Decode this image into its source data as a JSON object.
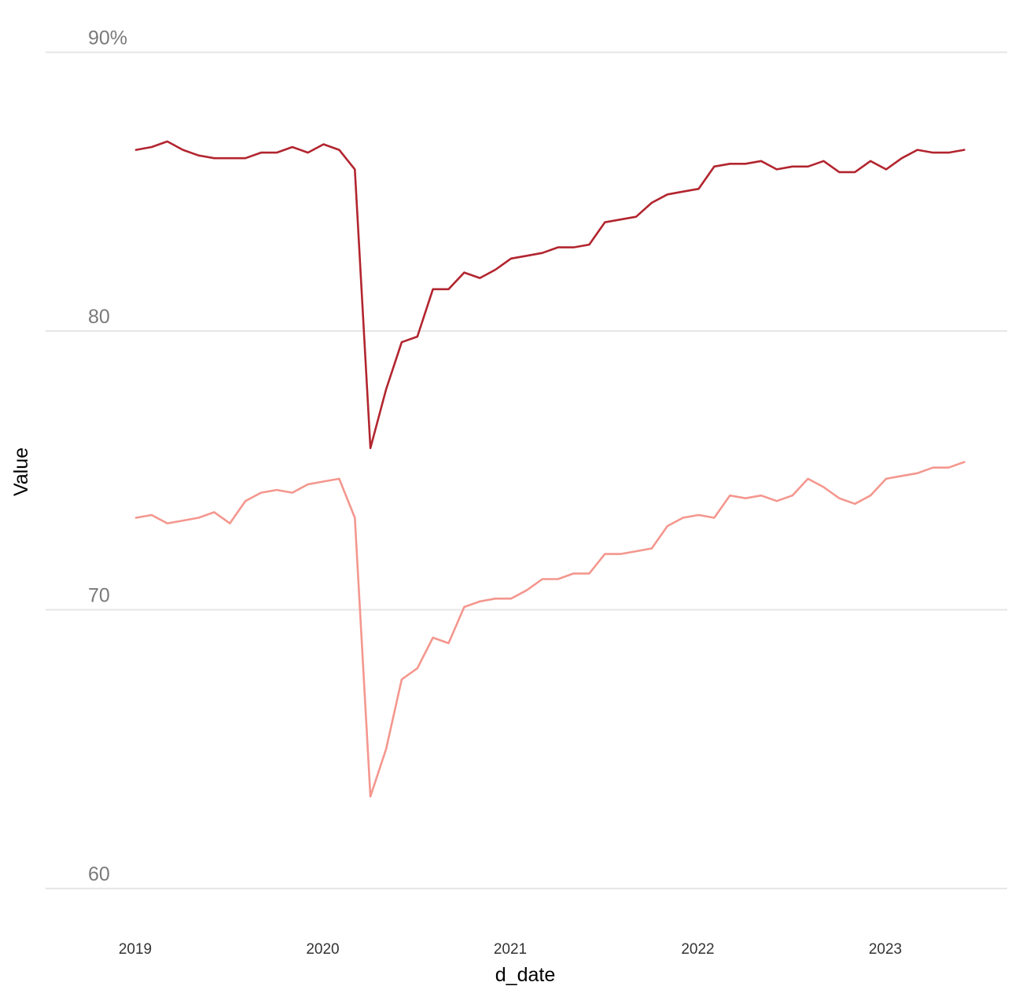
{
  "chart_data": {
    "type": "line",
    "title": "",
    "xlabel": "d_date",
    "ylabel": "Value",
    "ylim": [
      59,
      92
    ],
    "y_ticks": [
      {
        "value": 60,
        "label": "60"
      },
      {
        "value": 70,
        "label": "70"
      },
      {
        "value": 80,
        "label": "80"
      },
      {
        "value": 90,
        "label": "90%"
      }
    ],
    "x_ticks": [
      {
        "value": "2019-01",
        "label": "2019"
      },
      {
        "value": "2020-01",
        "label": "2020"
      },
      {
        "value": "2021-01",
        "label": "2021"
      },
      {
        "value": "2022-01",
        "label": "2022"
      },
      {
        "value": "2023-01",
        "label": "2023"
      }
    ],
    "xlim": [
      "2018-10",
      "2023-10"
    ],
    "grid": "horizontal",
    "legend": "none",
    "x": [
      "2019-01",
      "2019-02",
      "2019-03",
      "2019-04",
      "2019-05",
      "2019-06",
      "2019-07",
      "2019-08",
      "2019-09",
      "2019-10",
      "2019-11",
      "2019-12",
      "2020-01",
      "2020-02",
      "2020-03",
      "2020-04",
      "2020-05",
      "2020-06",
      "2020-07",
      "2020-08",
      "2020-09",
      "2020-10",
      "2020-11",
      "2020-12",
      "2021-01",
      "2021-02",
      "2021-03",
      "2021-04",
      "2021-05",
      "2021-06",
      "2021-07",
      "2021-08",
      "2021-09",
      "2021-10",
      "2021-11",
      "2021-12",
      "2022-01",
      "2022-02",
      "2022-03",
      "2022-04",
      "2022-05",
      "2022-06",
      "2022-07",
      "2022-08",
      "2022-09",
      "2022-10",
      "2022-11",
      "2022-12",
      "2023-01",
      "2023-02",
      "2023-03",
      "2023-04",
      "2023-05",
      "2023-06"
    ],
    "series": [
      {
        "color": "#b2252f",
        "values": [
          86.5,
          86.6,
          86.8,
          86.5,
          86.3,
          86.2,
          86.2,
          86.2,
          86.4,
          86.4,
          86.6,
          86.4,
          86.7,
          86.5,
          85.8,
          75.8,
          77.9,
          79.6,
          79.8,
          81.5,
          81.5,
          82.1,
          81.9,
          82.2,
          82.6,
          82.7,
          82.8,
          83.0,
          83.0,
          83.1,
          83.9,
          84.0,
          84.1,
          84.6,
          84.9,
          85.0,
          85.1,
          85.9,
          86.0,
          86.0,
          86.1,
          85.8,
          85.9,
          85.9,
          86.1,
          85.7,
          85.7,
          86.1,
          85.8,
          86.2,
          86.5,
          86.4,
          86.4,
          86.5
        ]
      },
      {
        "color": "#f4978e",
        "values": [
          73.3,
          73.4,
          73.1,
          73.2,
          73.3,
          73.5,
          73.1,
          73.9,
          74.2,
          74.3,
          74.2,
          74.5,
          74.6,
          74.7,
          73.3,
          63.3,
          65.0,
          67.5,
          67.9,
          69.0,
          68.8,
          70.1,
          70.3,
          70.4,
          70.4,
          70.7,
          71.1,
          71.1,
          71.3,
          71.3,
          72.0,
          72.0,
          72.1,
          72.2,
          73.0,
          73.3,
          73.4,
          73.3,
          74.1,
          74.0,
          74.1,
          73.9,
          74.1,
          74.7,
          74.4,
          74.0,
          73.8,
          74.1,
          74.7,
          74.8,
          74.9,
          75.1,
          75.1,
          75.3
        ]
      }
    ]
  }
}
